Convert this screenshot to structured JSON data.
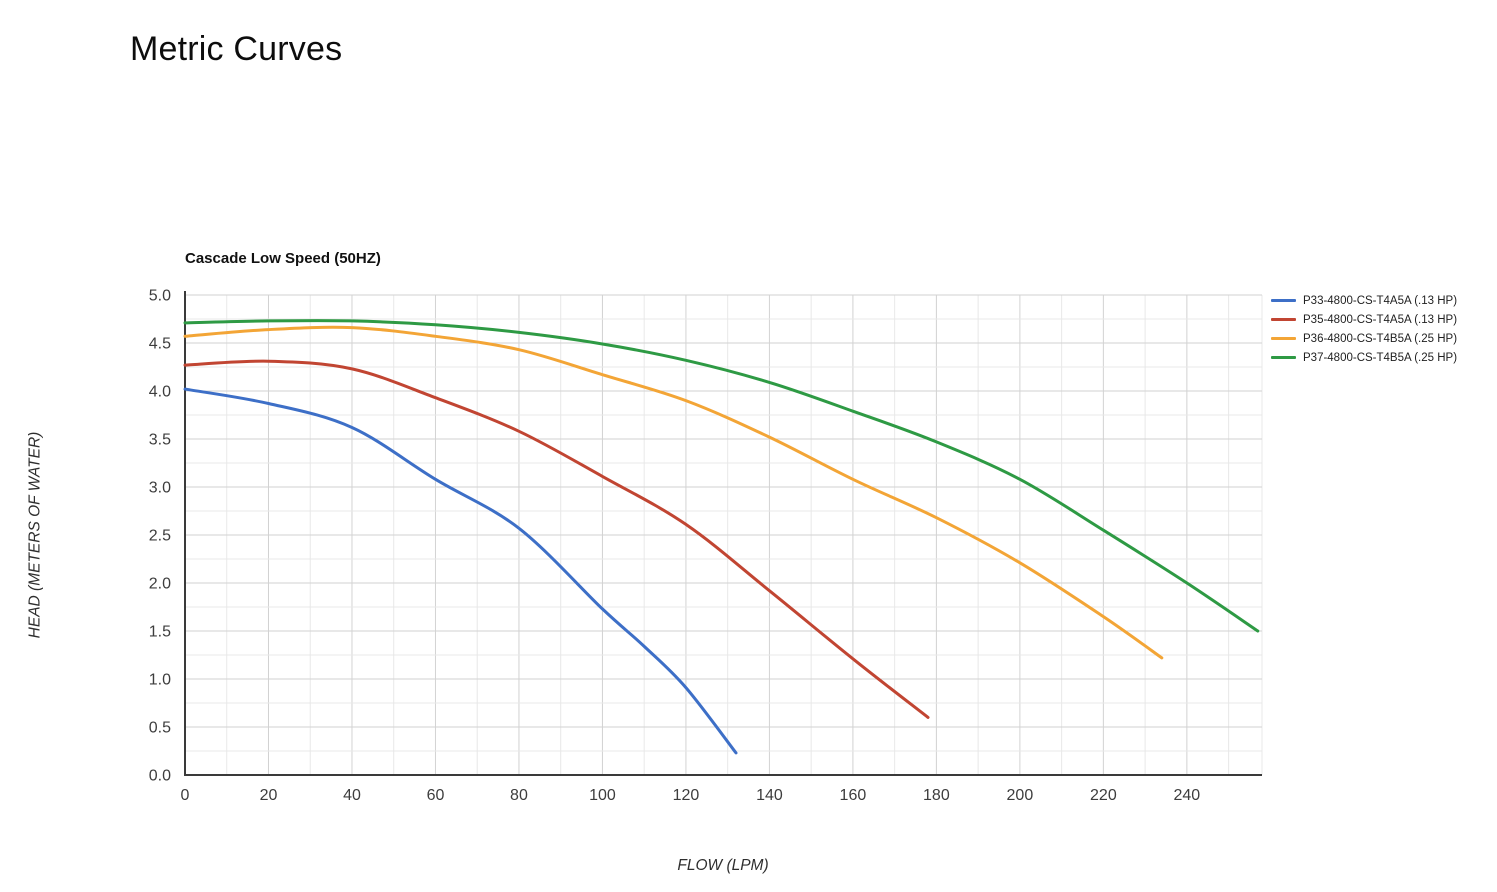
{
  "page": {
    "title": "Metric Curves"
  },
  "chart": {
    "title": "Cascade Low Speed (50HZ)",
    "x_axis_title": "FLOW (LPM)",
    "y_axis_title": "HEAD (METERS OF WATER)"
  },
  "chart_data": {
    "type": "line",
    "title": "Cascade Low Speed (50HZ)",
    "xlabel": "FLOW (LPM)",
    "ylabel": "HEAD (METERS OF WATER)",
    "xlim": [
      0,
      258
    ],
    "ylim": [
      0,
      5
    ],
    "x_ticks": [
      0,
      20,
      40,
      60,
      80,
      100,
      120,
      140,
      160,
      180,
      200,
      220,
      240
    ],
    "y_ticks": [
      0.0,
      0.5,
      1.0,
      1.5,
      2.0,
      2.5,
      3.0,
      3.5,
      4.0,
      4.5,
      5.0
    ],
    "x_minor_step": 10,
    "y_minor_step": 0.25,
    "grid": true,
    "legend_position": "right",
    "axis_colors": {
      "minor_grid": "#e8e8e8",
      "major_grid": "#d2d2d2",
      "axis_line": "#3a3a3a",
      "tick_text": "#3d3d3d"
    },
    "series": [
      {
        "id": "p33",
        "name": "P33-4800-CS-T4A5A (.13 HP)",
        "color": "#3d6fc7",
        "points": [
          [
            0,
            4.02
          ],
          [
            20,
            3.87
          ],
          [
            40,
            3.62
          ],
          [
            60,
            3.08
          ],
          [
            80,
            2.57
          ],
          [
            100,
            1.73
          ],
          [
            110,
            1.34
          ],
          [
            120,
            0.91
          ],
          [
            132,
            0.23
          ]
        ]
      },
      {
        "id": "p35",
        "name": "P35-4800-CS-T4A5A (.13 HP)",
        "color": "#c14532",
        "points": [
          [
            0,
            4.27
          ],
          [
            20,
            4.31
          ],
          [
            40,
            4.23
          ],
          [
            60,
            3.93
          ],
          [
            80,
            3.58
          ],
          [
            100,
            3.11
          ],
          [
            120,
            2.61
          ],
          [
            140,
            1.92
          ],
          [
            160,
            1.21
          ],
          [
            178,
            0.6
          ]
        ]
      },
      {
        "id": "p36",
        "name": "P36-4800-CS-T4B5A (.25 HP)",
        "color": "#f3a536",
        "points": [
          [
            0,
            4.57
          ],
          [
            20,
            4.64
          ],
          [
            40,
            4.66
          ],
          [
            60,
            4.57
          ],
          [
            80,
            4.43
          ],
          [
            100,
            4.17
          ],
          [
            120,
            3.9
          ],
          [
            140,
            3.52
          ],
          [
            160,
            3.08
          ],
          [
            180,
            2.68
          ],
          [
            200,
            2.21
          ],
          [
            220,
            1.65
          ],
          [
            234,
            1.22
          ]
        ]
      },
      {
        "id": "p37",
        "name": "P37-4800-CS-T4B5A (.25 HP)",
        "color": "#2e9a44",
        "points": [
          [
            0,
            4.71
          ],
          [
            20,
            4.73
          ],
          [
            40,
            4.73
          ],
          [
            60,
            4.69
          ],
          [
            80,
            4.61
          ],
          [
            100,
            4.49
          ],
          [
            120,
            4.32
          ],
          [
            140,
            4.09
          ],
          [
            160,
            3.79
          ],
          [
            180,
            3.47
          ],
          [
            200,
            3.08
          ],
          [
            220,
            2.55
          ],
          [
            240,
            2.0
          ],
          [
            257,
            1.5
          ]
        ]
      }
    ]
  }
}
